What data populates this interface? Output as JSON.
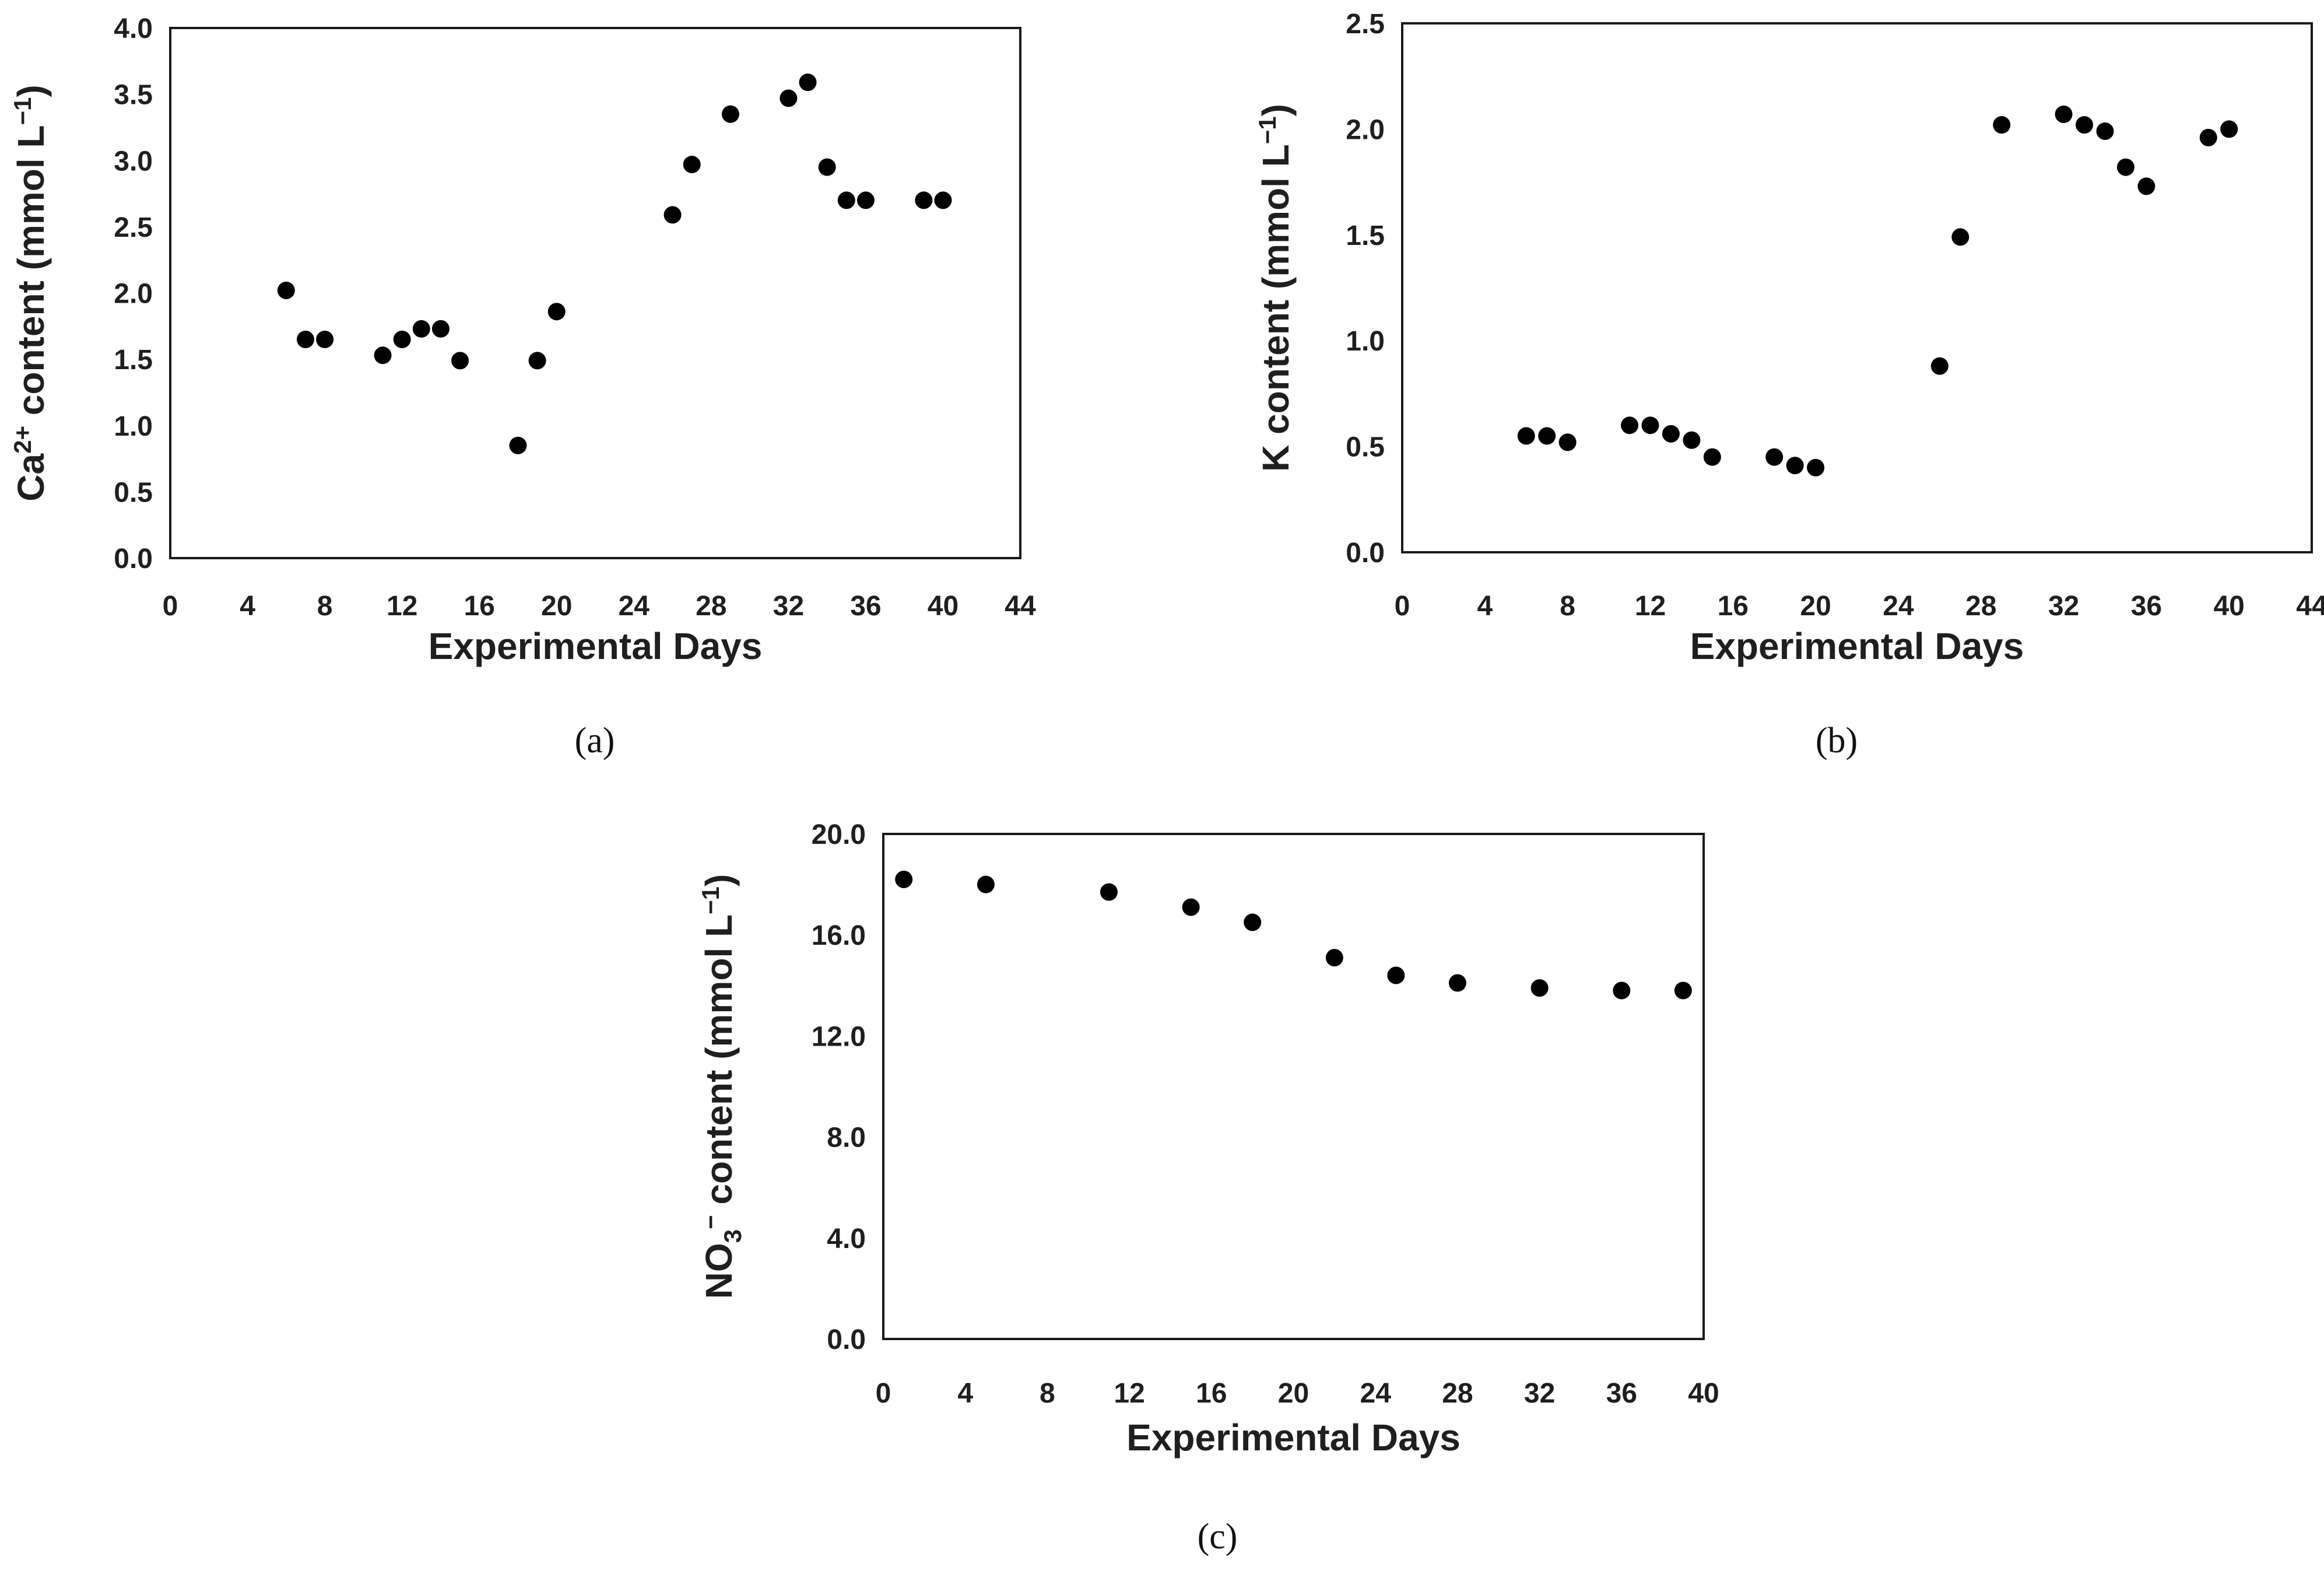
{
  "chart_data": [
    {
      "type": "scatter",
      "ylabel": "Ca2+ content (mmol L−1)",
      "ylabel_parts": {
        "base": "Ca",
        "sup": "2+",
        "rest": " content (mmol L",
        "sup2": "−1",
        "end": ")"
      },
      "xlabel": "Experimental Days",
      "caption": "(a)",
      "xlim": [
        0,
        44
      ],
      "ylim": [
        0,
        4
      ],
      "xticks": [
        0,
        4,
        8,
        12,
        16,
        20,
        24,
        28,
        32,
        36,
        40,
        44
      ],
      "xtick_labels": [
        "0",
        "4",
        "8",
        "12",
        "16",
        "20",
        "24",
        "28",
        "32",
        "36",
        "40",
        "44"
      ],
      "yticks": [
        0,
        0.5,
        1,
        1.5,
        2,
        2.5,
        3,
        3.5,
        4
      ],
      "ytick_labels": [
        "0.0",
        "0.5",
        "1.0",
        "1.5",
        "2.0",
        "2.5",
        "3.0",
        "3.5",
        "4.0"
      ],
      "points": [
        [
          6,
          2.02
        ],
        [
          7,
          1.65
        ],
        [
          8,
          1.65
        ],
        [
          11,
          1.53
        ],
        [
          12,
          1.65
        ],
        [
          13,
          1.73
        ],
        [
          14,
          1.73
        ],
        [
          15,
          1.49
        ],
        [
          18,
          0.85
        ],
        [
          19,
          1.49
        ],
        [
          20,
          1.86
        ],
        [
          26,
          2.59
        ],
        [
          27,
          2.97
        ],
        [
          29,
          3.35
        ],
        [
          32,
          3.47
        ],
        [
          33,
          3.59
        ],
        [
          34,
          2.95
        ],
        [
          35,
          2.7
        ],
        [
          36,
          2.7
        ],
        [
          39,
          2.7
        ],
        [
          40,
          2.7
        ]
      ],
      "color": "#000000"
    },
    {
      "type": "scatter",
      "ylabel": "K content (mmol L−1)",
      "ylabel_parts": {
        "base": "K content (mmol L",
        "sup": "−1",
        "end": ")"
      },
      "xlabel": "Experimental Days",
      "caption": "(b)",
      "xlim": [
        0,
        44
      ],
      "ylim": [
        0,
        2.5
      ],
      "xticks": [
        0,
        4,
        8,
        12,
        16,
        20,
        24,
        28,
        32,
        36,
        40,
        44
      ],
      "xtick_labels": [
        "0",
        "4",
        "8",
        "12",
        "16",
        "20",
        "24",
        "28",
        "32",
        "36",
        "40",
        "44"
      ],
      "yticks": [
        0,
        0.5,
        1,
        1.5,
        2,
        2.5
      ],
      "ytick_labels": [
        "0.0",
        "0.5",
        "1.0",
        "1.5",
        "2.0",
        "2.5"
      ],
      "points": [
        [
          6,
          0.55
        ],
        [
          7,
          0.55
        ],
        [
          8,
          0.52
        ],
        [
          11,
          0.6
        ],
        [
          12,
          0.6
        ],
        [
          13,
          0.56
        ],
        [
          14,
          0.53
        ],
        [
          15,
          0.45
        ],
        [
          18,
          0.45
        ],
        [
          19,
          0.41
        ],
        [
          20,
          0.4
        ],
        [
          26,
          0.88
        ],
        [
          27,
          1.49
        ],
        [
          29,
          2.02
        ],
        [
          32,
          2.07
        ],
        [
          33,
          2.02
        ],
        [
          34,
          1.99
        ],
        [
          35,
          1.82
        ],
        [
          36,
          1.73
        ],
        [
          39,
          1.96
        ],
        [
          40,
          2.0
        ]
      ],
      "color": "#000000"
    },
    {
      "type": "scatter",
      "ylabel": "NO3− content (mmol L−1)",
      "ylabel_parts": {
        "base": "NO",
        "sub": "3",
        "sup": "−",
        "rest": " content (mmol L",
        "sup2": "−1",
        "end": ")"
      },
      "xlabel": "Experimental Days",
      "caption": "(c)",
      "xlim": [
        0,
        40
      ],
      "ylim": [
        0,
        20
      ],
      "xticks": [
        0,
        4,
        8,
        12,
        16,
        20,
        24,
        28,
        32,
        36,
        40
      ],
      "xtick_labels": [
        "0",
        "4",
        "8",
        "12",
        "16",
        "20",
        "24",
        "28",
        "32",
        "36",
        "40"
      ],
      "yticks": [
        0,
        4,
        8,
        12,
        16,
        20
      ],
      "ytick_labels": [
        "0.0",
        "4.0",
        "8.0",
        "12.0",
        "16.0",
        "20.0"
      ],
      "points": [
        [
          1,
          18.2
        ],
        [
          5,
          18.0
        ],
        [
          11,
          17.7
        ],
        [
          15,
          17.1
        ],
        [
          18,
          16.5
        ],
        [
          22,
          15.1
        ],
        [
          25,
          14.4
        ],
        [
          28,
          14.1
        ],
        [
          32,
          13.9
        ],
        [
          36,
          13.8
        ],
        [
          39,
          13.8
        ]
      ],
      "color": "#000000"
    }
  ]
}
